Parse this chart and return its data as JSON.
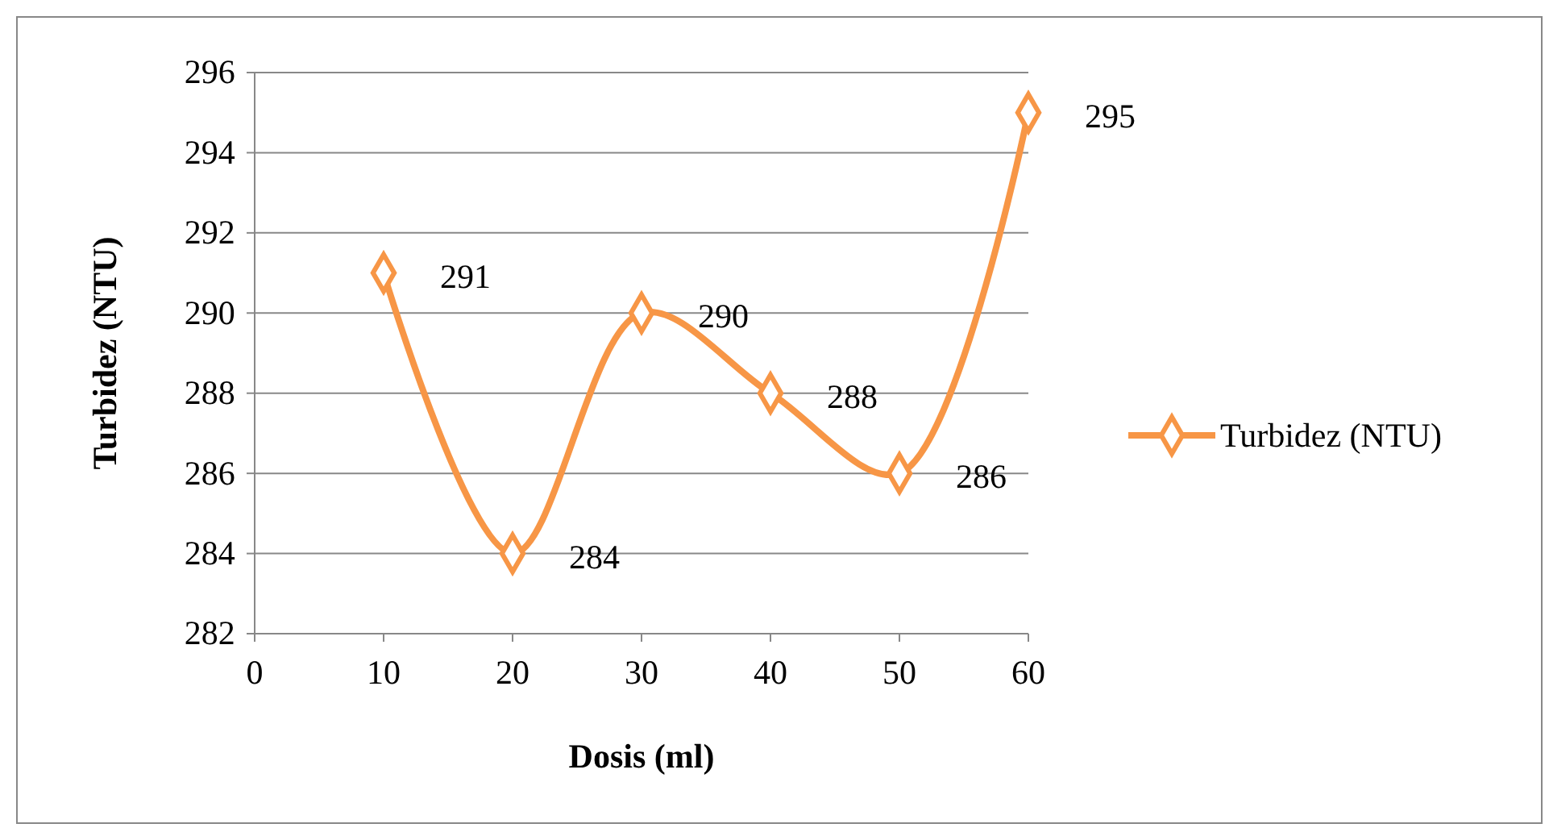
{
  "chart_data": {
    "type": "line",
    "xlabel": "Dosis (ml)",
    "ylabel": "Turbidez (NTU)",
    "x": [
      10,
      20,
      30,
      40,
      50,
      60
    ],
    "series": [
      {
        "name": "Turbidez (NTU)",
        "color": "#f79646",
        "values": [
          291,
          284,
          290,
          288,
          286,
          295
        ]
      }
    ],
    "xlim": [
      0,
      60
    ],
    "xticks": [
      0,
      10,
      20,
      30,
      40,
      50,
      60
    ],
    "ylim": [
      282,
      296
    ],
    "yticks": [
      282,
      284,
      286,
      288,
      290,
      292,
      294,
      296
    ],
    "grid": "y",
    "legend": "right",
    "marker": "diamond",
    "line_style": "solid",
    "data_labels": true
  }
}
